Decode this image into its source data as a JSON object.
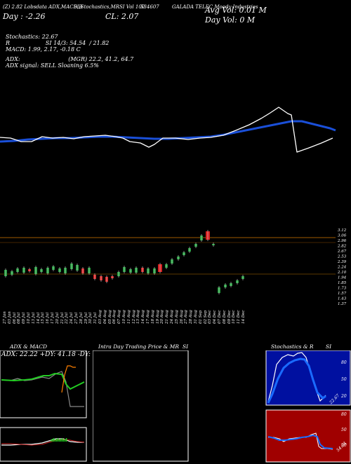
{
  "header": {
    "tag_line": "(Z) 2.82 Lobsdata ADX,MACD,B",
    "tag_stoch": "SI,Stochastics,MR",
    "tag_vol": "SI Vol 100",
    "tag_ticker": "GALADA TELEC Moody Industries",
    "ticker_code": "534607",
    "current_label": "CL: 2.07",
    "day_change": "Day : -2.26",
    "h2": "(Z) 2.82",
    "avg_vol": "Avg Vol: 0.01 M",
    "day_vol": "Day Vol: 0  M"
  },
  "indicators": {
    "stochastics": "Stochastics: 22.67",
    "rsi": "R                    SI 14/3: 54.54  / 21.82",
    "macd": "MACD: 1.99, 2.17, -0.18  C",
    "adx": "ADX:                           (MGR) 22.2, 41.2, 64.7",
    "adx_signal": "ADX  signal: SELL  Sloaning 6.5%"
  },
  "price_axis": [
    "3.12",
    "3.06",
    "2.96",
    "2.82",
    "2.67",
    "2.53",
    "2.39",
    "2.24",
    "2.10",
    "1.94",
    "1.85",
    "1.73",
    "1.57",
    "1.43",
    "1.37"
  ],
  "date_labels": [
    "27 Jan",
    "03 Jan",
    "06 Jul",
    "08 Jul",
    "09 Jul",
    "10 Jul",
    "13 Jul",
    "14 Jul",
    "15 Jul",
    "16 Jul",
    "17 Jul",
    "20 Jul",
    "21 Jul",
    "22 Jul",
    "24 Jul",
    "27 Jul",
    "28 Jul",
    "29 Jul",
    "30 Jul",
    "31 Jul",
    "03 Aug",
    "04 Aug",
    "05 Aug",
    "06 Aug",
    "07 Aug",
    "10 Aug",
    "11 Aug",
    "12 Aug",
    "13 Aug",
    "14 Aug",
    "17 Aug",
    "18 Aug",
    "19 Aug",
    "20 Aug",
    "21 Aug",
    "24 Aug",
    "25 Aug",
    "26 Aug",
    "27 Aug",
    "28 Aug",
    "31 Aug",
    "01 Sep",
    "02 Sep",
    "03 Dec",
    "04 Dec",
    "07 Dec",
    "08 Dec",
    "09 Dec",
    "10 Dec",
    "11 Dec",
    "14 Dec"
  ],
  "panels": {
    "adx": {
      "title": "ADX  & MACD",
      "values": "ADX: 22.22  +DY: 41.18  -DY: 64.71"
    },
    "intraday": {
      "title": "Intra  Day Trading Price  & MR",
      "title_suffix": "SI"
    },
    "stoch": {
      "title": "Stochastics & R",
      "title_suffix": "SI",
      "levels": [
        "80",
        "50",
        "20"
      ],
      "current": "22.67",
      "rsi_levels": [
        "80",
        "50",
        "20"
      ],
      "rsi_current": "54.54"
    }
  },
  "colors": {
    "ma_blue": "#1a4fd8",
    "price_white": "#ffffff",
    "candle_green": "#1f9a3a",
    "candle_red": "#d61f1f",
    "stoch_bg": "#0010a0",
    "rsi_bg": "#a00000",
    "adx_green": "#22cc22",
    "adx_orange": "#ff8000"
  }
}
